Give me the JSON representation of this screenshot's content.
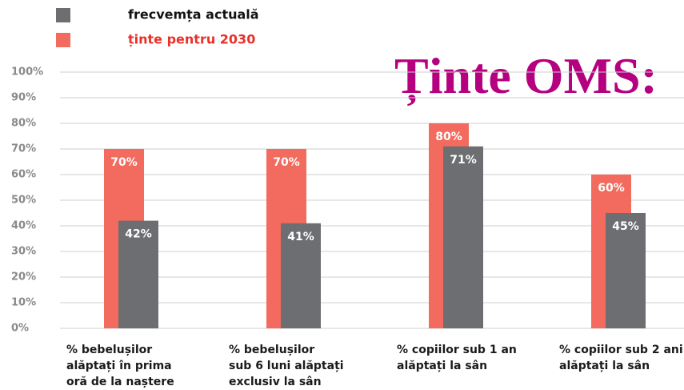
{
  "chart_data": {
    "type": "bar",
    "title": "Ținte OMS:",
    "categories": [
      "% bebelușilor\nalăptați în prima\noră de la naștere",
      "% bebelușilor\nsub 6 luni alăptați\nexclusiv la sân",
      "% copiilor sub 1 an\nalăptați la sân",
      "% copiilor sub 2 ani\nalăptați la sân"
    ],
    "series": [
      {
        "name": "ținte pentru 2030",
        "color": "#f26b5e",
        "values": [
          70,
          70,
          80,
          60
        ],
        "value_labels": [
          "70%",
          "70%",
          "80%",
          "60%"
        ]
      },
      {
        "name": "frecvemța actuală",
        "color": "#6d6e71",
        "values": [
          42,
          41,
          71,
          45
        ],
        "value_labels": [
          "42%",
          "41%",
          "71%",
          "45%"
        ]
      }
    ],
    "ylim": [
      0,
      100
    ],
    "yticks": [
      {
        "value": 0,
        "label": "0%"
      },
      {
        "value": 10,
        "label": "10%"
      },
      {
        "value": 20,
        "label": "20%"
      },
      {
        "value": 30,
        "label": "30%"
      },
      {
        "value": 40,
        "label": "40%"
      },
      {
        "value": 50,
        "label": "50%"
      },
      {
        "value": 60,
        "label": "60%"
      },
      {
        "value": 70,
        "label": "70%"
      },
      {
        "value": 80,
        "label": "80%"
      },
      {
        "value": 90,
        "label": "90%"
      },
      {
        "value": 100,
        "label": "100%"
      }
    ],
    "grid": true
  }
}
